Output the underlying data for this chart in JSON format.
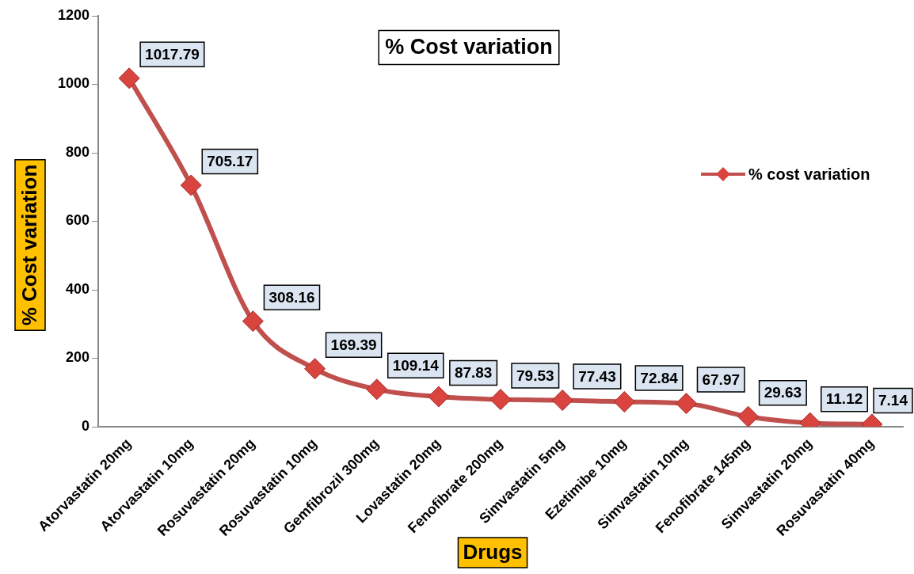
{
  "chart_data": {
    "type": "line",
    "title": "% Cost variation",
    "xlabel": "Drugs",
    "ylabel": "% Cost variation",
    "categories": [
      "Atorvastatin 20mg",
      "Atorvastatin 10mg",
      "Rosuvastatin 20mg",
      "Rosuvastatin 10mg",
      "Gemfibrozil 300mg",
      "Lovastatin 20mg",
      "Fenofibrate 200mg",
      "Simvastatin 5mg",
      "Ezetimibe 10mg",
      "Simvastatin 10mg",
      "Fenofibrate 145mg",
      "Simvastatin 20mg",
      "Rosuvastatin 40mg"
    ],
    "series": [
      {
        "name": "% cost variation",
        "color": "#c0504d",
        "values": [
          1017.79,
          705.17,
          308.16,
          169.39,
          109.14,
          87.83,
          79.53,
          77.43,
          72.84,
          67.97,
          29.63,
          11.12,
          7.14
        ]
      }
    ],
    "ylim": [
      0,
      1200
    ],
    "yticks": [
      0,
      200,
      400,
      600,
      800,
      1000,
      1200
    ],
    "grid": false,
    "legend": "right",
    "marker": "diamond",
    "line_style": "solid",
    "data_labels": true
  }
}
